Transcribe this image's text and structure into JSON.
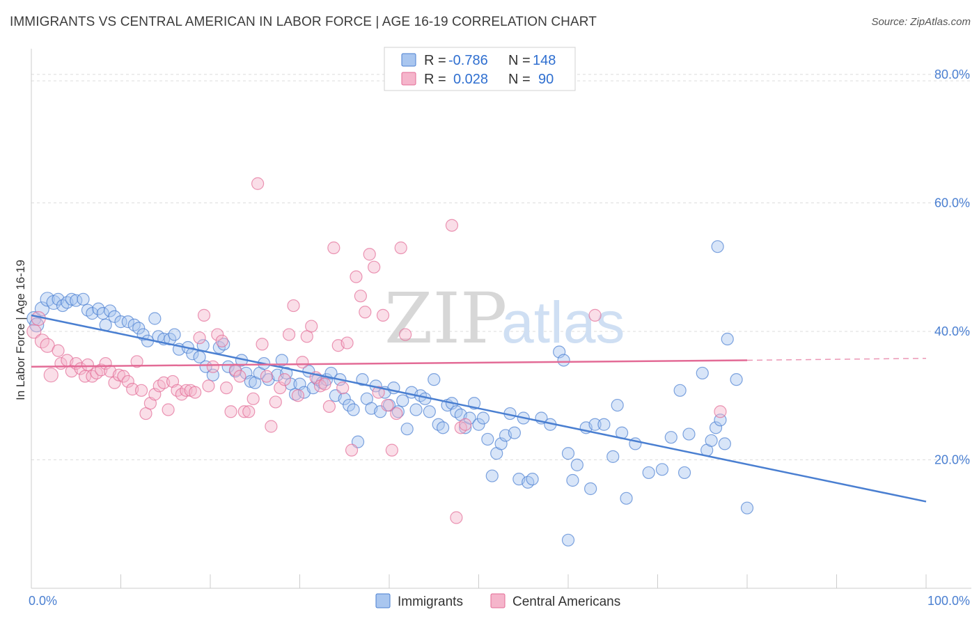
{
  "header": {
    "title": "IMMIGRANTS VS CENTRAL AMERICAN IN LABOR FORCE | AGE 16-19 CORRELATION CHART",
    "source": "Source: ZipAtlas.com"
  },
  "watermark": {
    "zip": "ZIP",
    "atlas": "atlas"
  },
  "colors": {
    "immigrants": "#4a7fd1",
    "immigrants_fill": "#a9c6ef",
    "central": "#e36b96",
    "central_fill": "#f5b5cb",
    "grid": "#dddddd",
    "axis_text": "#4a7fd1"
  },
  "legend": {
    "rows": [
      {
        "r_label": "R =",
        "r_value": "-0.786",
        "n_label": "N =",
        "n_value": "148",
        "series": "immigrants"
      },
      {
        "r_label": "R =",
        "r_value": "0.028",
        "n_label": "N =",
        "n_value": "90",
        "series": "central"
      }
    ]
  },
  "chart_data": {
    "type": "scatter",
    "title": "IMMIGRANTS VS CENTRAL AMERICAN IN LABOR FORCE | AGE 16-19 CORRELATION CHART",
    "xlabel": "",
    "ylabel": "In Labor Force | Age 16-19",
    "xlim": [
      0,
      100
    ],
    "ylim": [
      0,
      84
    ],
    "x_ticks": [
      "0.0%",
      "100.0%"
    ],
    "y_ticks": [
      {
        "value": 20,
        "label": "20.0%"
      },
      {
        "value": 40,
        "label": "40.0%"
      },
      {
        "value": 60,
        "label": "60.0%"
      },
      {
        "value": 80,
        "label": "80.0%"
      }
    ],
    "grid": true,
    "legend_position": "top-center",
    "series": [
      {
        "name": "Immigrants",
        "color": "#4a7fd1",
        "trend": {
          "x": [
            0,
            100
          ],
          "y": [
            42.5,
            13.5
          ]
        },
        "points": [
          [
            0.3,
            42
          ],
          [
            0.6,
            41
          ],
          [
            1.2,
            43.5
          ],
          [
            1.8,
            45
          ],
          [
            2.5,
            44.5
          ],
          [
            3,
            45
          ],
          [
            3.5,
            44
          ],
          [
            4,
            44.5
          ],
          [
            4.5,
            45
          ],
          [
            5,
            44.8
          ],
          [
            5.8,
            45
          ],
          [
            6.3,
            43.3
          ],
          [
            6.8,
            42.8
          ],
          [
            7.5,
            43.5
          ],
          [
            8,
            42.8
          ],
          [
            8.3,
            41
          ],
          [
            8.8,
            43.2
          ],
          [
            9.3,
            42.3
          ],
          [
            10,
            41.5
          ],
          [
            10.8,
            41.5
          ],
          [
            11.5,
            41
          ],
          [
            12,
            40.5
          ],
          [
            12.5,
            39.5
          ],
          [
            13,
            38.5
          ],
          [
            13.8,
            42
          ],
          [
            14.2,
            39.2
          ],
          [
            14.8,
            38.8
          ],
          [
            15.5,
            38.8
          ],
          [
            16,
            39.5
          ],
          [
            16.5,
            37.2
          ],
          [
            17.5,
            37.5
          ],
          [
            18,
            36.5
          ],
          [
            18.8,
            36
          ],
          [
            19.2,
            37.8
          ],
          [
            19.5,
            34.5
          ],
          [
            20.3,
            33.2
          ],
          [
            21,
            37.5
          ],
          [
            21.5,
            38
          ],
          [
            22,
            34.5
          ],
          [
            22.8,
            33.8
          ],
          [
            23.5,
            35.5
          ],
          [
            24,
            33.5
          ],
          [
            24.5,
            32.2
          ],
          [
            25,
            32
          ],
          [
            25.5,
            33.5
          ],
          [
            26,
            35
          ],
          [
            26.5,
            32.5
          ],
          [
            27.5,
            33.2
          ],
          [
            28,
            35.5
          ],
          [
            28.5,
            33.5
          ],
          [
            29,
            31.8
          ],
          [
            29.5,
            30.2
          ],
          [
            30,
            31.8
          ],
          [
            30.5,
            30.5
          ],
          [
            31,
            33.8
          ],
          [
            31.5,
            31.2
          ],
          [
            32,
            32.5
          ],
          [
            32.5,
            32
          ],
          [
            33,
            32.5
          ],
          [
            33.5,
            33.5
          ],
          [
            34,
            30
          ],
          [
            34.5,
            32.5
          ],
          [
            35,
            29.5
          ],
          [
            35.5,
            28.5
          ],
          [
            36,
            27.8
          ],
          [
            36.5,
            22.8
          ],
          [
            37,
            32.5
          ],
          [
            37.5,
            29.5
          ],
          [
            38,
            28
          ],
          [
            38.5,
            31.5
          ],
          [
            39,
            27.5
          ],
          [
            39.5,
            30.5
          ],
          [
            40,
            28.5
          ],
          [
            40.5,
            31.2
          ],
          [
            41,
            27.5
          ],
          [
            41.5,
            29.2
          ],
          [
            42,
            24.8
          ],
          [
            42.5,
            30.5
          ],
          [
            43,
            27.8
          ],
          [
            43.5,
            30
          ],
          [
            44,
            29.5
          ],
          [
            44.5,
            27.5
          ],
          [
            45,
            32.5
          ],
          [
            45.5,
            25.5
          ],
          [
            46,
            25
          ],
          [
            46.5,
            28.5
          ],
          [
            47,
            28.8
          ],
          [
            47.5,
            27.5
          ],
          [
            48,
            27
          ],
          [
            48.5,
            25
          ],
          [
            49,
            26.5
          ],
          [
            49.5,
            28.8
          ],
          [
            50,
            25.5
          ],
          [
            50.5,
            26.5
          ],
          [
            51,
            23.2
          ],
          [
            51.5,
            17.5
          ],
          [
            52,
            21
          ],
          [
            52.5,
            22.5
          ],
          [
            53,
            23.8
          ],
          [
            53.5,
            27.2
          ],
          [
            54,
            24.2
          ],
          [
            54.5,
            17
          ],
          [
            55,
            26.5
          ],
          [
            55.5,
            16.5
          ],
          [
            56,
            17
          ],
          [
            57,
            26.5
          ],
          [
            58,
            25.5
          ],
          [
            59,
            36.8
          ],
          [
            59.5,
            35.5
          ],
          [
            60,
            21
          ],
          [
            60.5,
            16.8
          ],
          [
            61,
            19.2
          ],
          [
            62,
            25
          ],
          [
            62.5,
            15.5
          ],
          [
            63,
            25.5
          ],
          [
            64,
            25.5
          ],
          [
            65,
            20.5
          ],
          [
            65.5,
            28.5
          ],
          [
            66,
            24.2
          ],
          [
            66.5,
            14
          ],
          [
            67.5,
            22.5
          ],
          [
            69,
            18
          ],
          [
            70.5,
            18.5
          ],
          [
            71.5,
            23.5
          ],
          [
            72.5,
            30.8
          ],
          [
            73,
            18
          ],
          [
            73.5,
            24
          ],
          [
            75,
            33.5
          ],
          [
            75.5,
            21.5
          ],
          [
            76,
            23
          ],
          [
            76.5,
            25
          ],
          [
            77,
            26.2
          ],
          [
            77.5,
            22.5
          ],
          [
            76.7,
            53.2
          ],
          [
            77.8,
            38.8
          ],
          [
            78.8,
            32.5
          ],
          [
            80,
            12.5
          ],
          [
            60,
            7.5
          ]
        ]
      },
      {
        "name": "Central Americans",
        "color": "#e36b96",
        "trend": {
          "x": [
            0,
            80
          ],
          "y": [
            34.5,
            35.5
          ]
        },
        "trend_dashed": {
          "x": [
            80,
            100
          ],
          "y": [
            35.5,
            35.8
          ]
        },
        "points": [
          [
            0.3,
            40
          ],
          [
            0.8,
            42
          ],
          [
            1.2,
            38.5
          ],
          [
            1.8,
            37.8
          ],
          [
            2.2,
            33.2
          ],
          [
            3,
            37
          ],
          [
            3.3,
            35
          ],
          [
            4,
            35.5
          ],
          [
            4.5,
            33.8
          ],
          [
            5,
            35
          ],
          [
            5.5,
            34.2
          ],
          [
            6,
            33
          ],
          [
            6.3,
            34.8
          ],
          [
            6.8,
            33
          ],
          [
            7.3,
            33.5
          ],
          [
            7.8,
            34
          ],
          [
            8.3,
            35
          ],
          [
            8.8,
            33.8
          ],
          [
            9.3,
            32
          ],
          [
            9.8,
            33.2
          ],
          [
            10.3,
            33
          ],
          [
            10.8,
            32.2
          ],
          [
            11.3,
            31
          ],
          [
            11.8,
            35.3
          ],
          [
            12.3,
            30.8
          ],
          [
            12.8,
            27.2
          ],
          [
            13.3,
            28.8
          ],
          [
            13.8,
            30.2
          ],
          [
            14.3,
            31.5
          ],
          [
            14.8,
            32
          ],
          [
            15.3,
            27.8
          ],
          [
            15.8,
            32.2
          ],
          [
            16.3,
            30.8
          ],
          [
            16.8,
            30.2
          ],
          [
            17.3,
            30.8
          ],
          [
            17.8,
            30.8
          ],
          [
            18.3,
            30.5
          ],
          [
            18.8,
            39
          ],
          [
            19.3,
            42.5
          ],
          [
            19.8,
            31.5
          ],
          [
            20.3,
            34.5
          ],
          [
            20.8,
            39.5
          ],
          [
            21.3,
            38.5
          ],
          [
            21.8,
            31.2
          ],
          [
            22.3,
            27.5
          ],
          [
            22.8,
            34
          ],
          [
            23.3,
            33
          ],
          [
            23.8,
            27.5
          ],
          [
            24.3,
            27.5
          ],
          [
            24.8,
            29.5
          ],
          [
            25.3,
            63
          ],
          [
            25.8,
            38
          ],
          [
            26.3,
            33
          ],
          [
            26.8,
            25.2
          ],
          [
            27.3,
            29
          ],
          [
            27.8,
            31.2
          ],
          [
            28.3,
            32.5
          ],
          [
            28.8,
            39.5
          ],
          [
            29.3,
            44
          ],
          [
            29.8,
            30
          ],
          [
            30.3,
            35.2
          ],
          [
            30.8,
            39.2
          ],
          [
            31.3,
            40.8
          ],
          [
            31.8,
            32.8
          ],
          [
            32.3,
            31.5
          ],
          [
            32.8,
            31.8
          ],
          [
            33.3,
            28.3
          ],
          [
            33.8,
            53
          ],
          [
            34.3,
            37.8
          ],
          [
            34.8,
            31.2
          ],
          [
            35.3,
            38.2
          ],
          [
            35.8,
            21.5
          ],
          [
            36.3,
            48.5
          ],
          [
            36.8,
            45.5
          ],
          [
            37.3,
            43
          ],
          [
            37.8,
            52
          ],
          [
            38.3,
            50
          ],
          [
            38.8,
            30.5
          ],
          [
            39.3,
            42.5
          ],
          [
            39.8,
            28.5
          ],
          [
            40.3,
            21.5
          ],
          [
            40.8,
            27.2
          ],
          [
            41.3,
            53
          ],
          [
            41.8,
            39.5
          ],
          [
            47,
            56.5
          ],
          [
            47.5,
            11
          ],
          [
            48,
            25
          ],
          [
            63,
            42.5
          ],
          [
            77,
            27.5
          ],
          [
            48.5,
            25.5
          ]
        ]
      }
    ]
  },
  "bottom_legend": {
    "items": [
      {
        "label": "Immigrants",
        "series": "immigrants"
      },
      {
        "label": "Central Americans",
        "series": "central"
      }
    ]
  }
}
